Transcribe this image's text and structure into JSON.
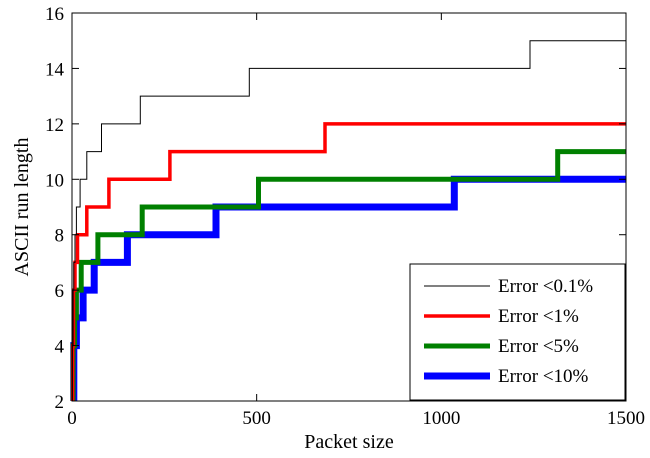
{
  "chart_data": {
    "type": "line",
    "title": "",
    "xlabel": "Packet size",
    "ylabel": "ASCII run length",
    "xlim": [
      0,
      1500
    ],
    "ylim": [
      2,
      16
    ],
    "xticks": [
      0,
      500,
      1000,
      1500
    ],
    "yticks": [
      2,
      4,
      6,
      8,
      10,
      12,
      14,
      16
    ],
    "grid": false,
    "legend_position": "bottom-right",
    "series": [
      {
        "name": "Error <0.1%",
        "color": "#000000",
        "style": "thin",
        "points": [
          [
            1,
            2
          ],
          [
            1,
            4
          ],
          [
            3,
            4
          ],
          [
            3,
            6
          ],
          [
            5,
            6
          ],
          [
            5,
            7
          ],
          [
            8,
            7
          ],
          [
            8,
            8
          ],
          [
            12,
            8
          ],
          [
            12,
            9
          ],
          [
            22,
            9
          ],
          [
            22,
            10
          ],
          [
            40,
            10
          ],
          [
            40,
            11
          ],
          [
            80,
            11
          ],
          [
            80,
            12
          ],
          [
            185,
            12
          ],
          [
            185,
            13
          ],
          [
            480,
            13
          ],
          [
            480,
            14
          ],
          [
            1240,
            14
          ],
          [
            1240,
            15
          ],
          [
            1500,
            15
          ]
        ]
      },
      {
        "name": "Error <1%",
        "color": "#ff0000",
        "style": "medium",
        "points": [
          [
            2,
            2
          ],
          [
            2,
            4
          ],
          [
            4,
            4
          ],
          [
            4,
            6
          ],
          [
            8,
            6
          ],
          [
            8,
            7
          ],
          [
            15,
            7
          ],
          [
            15,
            8
          ],
          [
            40,
            8
          ],
          [
            40,
            9
          ],
          [
            100,
            9
          ],
          [
            100,
            10
          ],
          [
            265,
            10
          ],
          [
            265,
            11
          ],
          [
            685,
            11
          ],
          [
            685,
            12
          ],
          [
            1500,
            12
          ]
        ]
      },
      {
        "name": "Error <5%",
        "color": "#008000",
        "style": "thick",
        "points": [
          [
            3,
            2
          ],
          [
            3,
            4
          ],
          [
            7,
            4
          ],
          [
            7,
            5
          ],
          [
            12,
            5
          ],
          [
            12,
            6
          ],
          [
            25,
            6
          ],
          [
            25,
            7
          ],
          [
            70,
            7
          ],
          [
            70,
            8
          ],
          [
            190,
            8
          ],
          [
            190,
            9
          ],
          [
            505,
            9
          ],
          [
            505,
            10
          ],
          [
            1315,
            10
          ],
          [
            1315,
            11
          ],
          [
            1500,
            11
          ]
        ]
      },
      {
        "name": "Error <10%",
        "color": "#0000ff",
        "style": "thickest",
        "points": [
          [
            5,
            2
          ],
          [
            5,
            4
          ],
          [
            12,
            4
          ],
          [
            12,
            5
          ],
          [
            30,
            5
          ],
          [
            30,
            6
          ],
          [
            60,
            6
          ],
          [
            60,
            7
          ],
          [
            150,
            7
          ],
          [
            150,
            8
          ],
          [
            390,
            8
          ],
          [
            390,
            9
          ],
          [
            1035,
            9
          ],
          [
            1035,
            10
          ],
          [
            1500,
            10
          ]
        ]
      }
    ]
  }
}
